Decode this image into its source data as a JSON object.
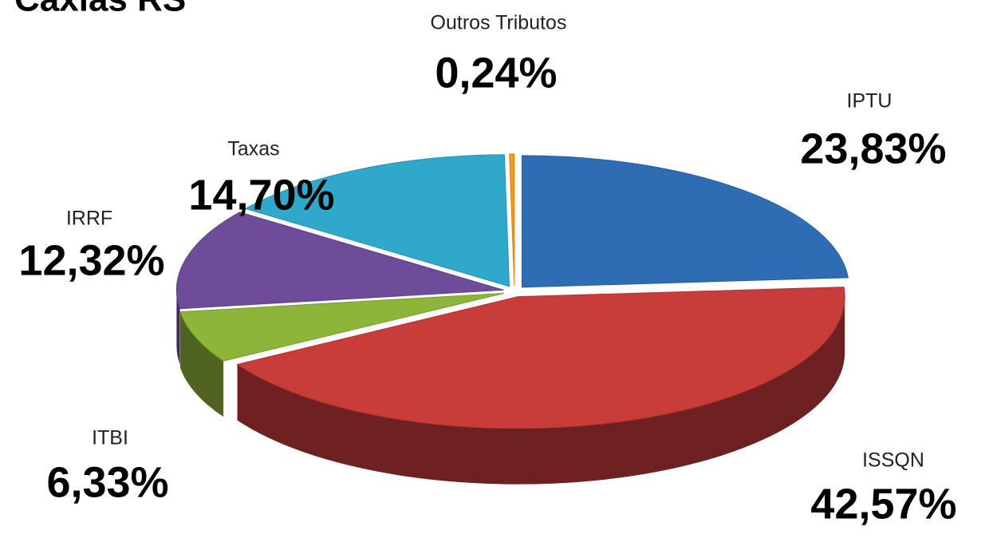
{
  "chart_data": {
    "type": "pie",
    "title": "Caxias RS",
    "categories": [
      "IPTU",
      "ISSQN",
      "ITBI",
      "IRRF",
      "Taxas",
      "Outros Tributos"
    ],
    "values": [
      23.83,
      42.57,
      6.33,
      12.32,
      14.7,
      0.24
    ],
    "value_labels": [
      "23,83%",
      "42,57%",
      "6,33%",
      "12,32%",
      "14,70%",
      "0,24%"
    ],
    "colors": [
      "#2e6db4",
      "#c83c3a",
      "#8db53a",
      "#6e4c9a",
      "#2fa8cc",
      "#f39a1c"
    ]
  }
}
